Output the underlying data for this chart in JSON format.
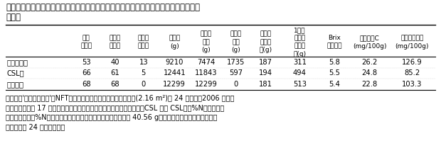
{
  "title_line1": "表１　有機質肥料と化学肥料を使った養液栽培のトマト一段栽培における収量と品質の",
  "title_line2": "　比較",
  "col_headers": [
    "果数\n（個）",
    "良品果\n（個）",
    "不良果\n（個）",
    "総収量\n(g)",
    "良品果\n収量\n(g)",
    "不良果\n収量\n(g)",
    "良品果\n平均果\n重(g)",
    "1株あ\nたり良\n品果収\n量(g)",
    "Brix\n（平均）",
    "ビタミンC\n(mg/100g)",
    "グルタミン酸\n(mg/100g)"
  ],
  "row_headers": [
    "化学肥料区",
    "CSL区",
    "籠煮汁区"
  ],
  "data": [
    [
      "53",
      "40",
      "13",
      "9210",
      "7474",
      "1735",
      "187",
      "311",
      "5.8",
      "26.2",
      "126.9"
    ],
    [
      "66",
      "61",
      "5",
      "12441",
      "11843",
      "597",
      "194",
      "494",
      "5.5",
      "24.8",
      "85.2"
    ],
    [
      "68",
      "68",
      "0",
      "12299",
      "12299",
      "0",
      "181",
      "513",
      "5.4",
      "22.8",
      "103.3"
    ]
  ],
  "footnote_lines": [
    "　トマト'ハウス桃太郎'をNFT（薄膜水耕）システムで栽培、各区(2.16 m²)に 24 株定植。2006 年６月",
    "７日定植、８月 17 日栽培終了。肥料は化学肥料区に大塚ハウス肥料、CSL 区に CSL（３%N）、籠煮汁",
    "区に籠煮汁（６%N）を使用。栽培通期の窒素添加量合計は各区 40.56 g。総収量、良品果収量、不良果",
    "収量は各区 24 株の合計値。"
  ],
  "bg_color": "#ffffff",
  "text_color": "#000000",
  "col_widths_raw": [
    1.5,
    0.65,
    0.65,
    0.65,
    0.75,
    0.68,
    0.68,
    0.68,
    0.85,
    0.72,
    0.88,
    1.05
  ],
  "title_fontsize": 8.5,
  "header_fontsize": 6.5,
  "data_fontsize": 7.2,
  "footnote_fontsize": 7.0,
  "line_thick": 1.0,
  "line_thin": 0.4
}
